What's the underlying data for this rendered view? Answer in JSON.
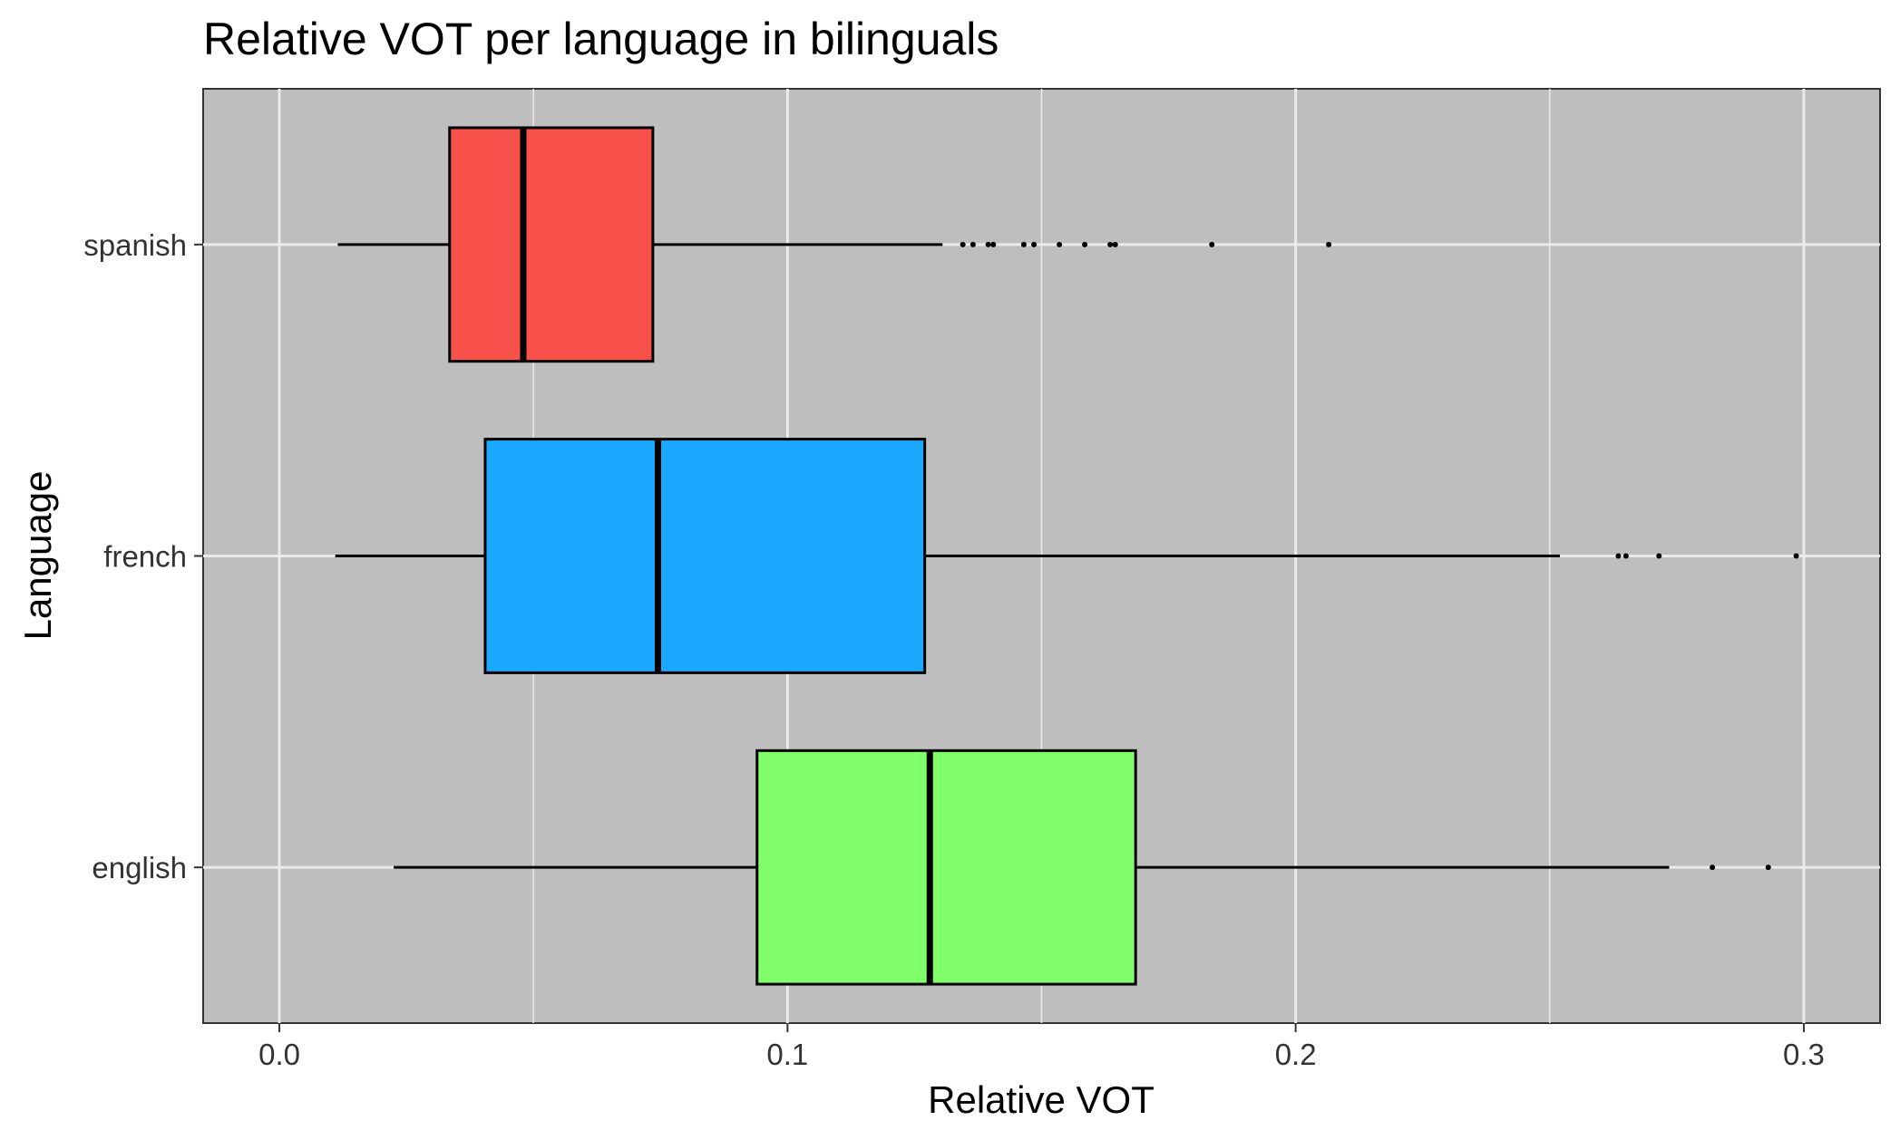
{
  "chart_data": {
    "type": "boxplot",
    "orientation": "horizontal",
    "title": "Relative VOT per language in bilinguals",
    "xlabel": "Relative VOT",
    "ylabel": "Language",
    "xlim": [
      -0.015,
      0.315
    ],
    "x_ticks": [
      0.0,
      0.1,
      0.2,
      0.3
    ],
    "x_tick_labels": [
      "0.0",
      "0.1",
      "0.2",
      "0.3"
    ],
    "grid": true,
    "panel_background": "#bebebe",
    "gridline_color": "#ebebeb",
    "categories": [
      "english",
      "french",
      "spanish"
    ],
    "series": [
      {
        "category": "spanish",
        "color": "#f8514a",
        "whisker_low": 0.0115,
        "q1": 0.0335,
        "median": 0.048,
        "q3": 0.0735,
        "whisker_high": 0.1305,
        "outliers": [
          0.1345,
          0.1365,
          0.1395,
          0.1405,
          0.1465,
          0.1485,
          0.1535,
          0.1585,
          0.1635,
          0.1645,
          0.1835,
          0.2065
        ]
      },
      {
        "category": "french",
        "color": "#1aa9ff",
        "whisker_low": 0.011,
        "q1": 0.0405,
        "median": 0.0745,
        "q3": 0.127,
        "whisker_high": 0.252,
        "outliers": [
          0.2635,
          0.265,
          0.2715,
          0.2985
        ]
      },
      {
        "category": "english",
        "color": "#80ff6b",
        "whisker_low": 0.0225,
        "q1": 0.094,
        "median": 0.128,
        "q3": 0.1685,
        "whisker_high": 0.2735,
        "outliers": [
          0.282,
          0.293
        ]
      }
    ]
  }
}
